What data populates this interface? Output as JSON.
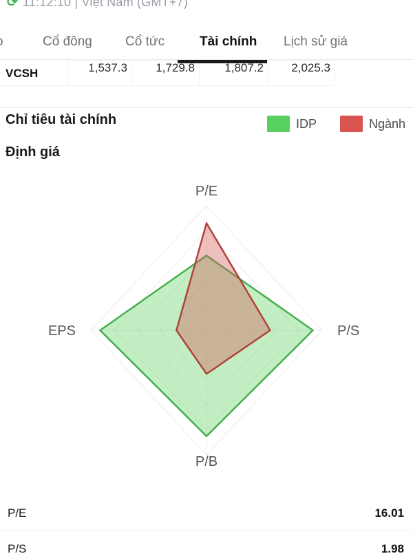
{
  "statusbar": {
    "time_text": "11:12:10 | Việt Nam (GMT+7)",
    "refresh_icon_color": "#3db24c"
  },
  "tabs": {
    "partial_left_label": "o",
    "items": [
      {
        "label": "Cổ đông",
        "active": false
      },
      {
        "label": "Cổ tức",
        "active": false
      },
      {
        "label": "Tài chính",
        "active": true
      },
      {
        "label": "Lịch sử giá",
        "active": false
      }
    ],
    "indicator_color": "#1a1a1a"
  },
  "table_row": {
    "label": "VCSH",
    "values": [
      "1,537.3",
      "1,729.8",
      "1,807.2",
      "2,025.3"
    ]
  },
  "section": {
    "title": "Chỉ tiêu tài chính",
    "subsection_title": "Định giá"
  },
  "legend": {
    "items": [
      {
        "label": "IDP",
        "color": "#57d061"
      },
      {
        "label": "Ngành",
        "color": "#d9544e"
      }
    ]
  },
  "chart_data": {
    "type": "radar",
    "title": "Định giá",
    "axes": [
      "P/E",
      "P/S",
      "P/B",
      "EPS"
    ],
    "rings": 5,
    "axis_range": [
      0,
      1
    ],
    "grid_color": "#ececec",
    "label_color": "#565656",
    "series": [
      {
        "name": "IDP",
        "line_color": "#45ae4d",
        "fill_color": "rgba(97,209,101,0.38)",
        "values": [
          0.6,
          0.92,
          0.85,
          0.92
        ]
      },
      {
        "name": "Ngành",
        "line_color": "#ae423b",
        "fill_color": "rgba(214,88,84,0.38)",
        "values": [
          0.86,
          0.55,
          0.35,
          0.26
        ]
      }
    ]
  },
  "metrics": {
    "rows": [
      {
        "label": "P/E",
        "value": "16.01"
      },
      {
        "label": "P/S",
        "value": "1.98"
      }
    ]
  }
}
